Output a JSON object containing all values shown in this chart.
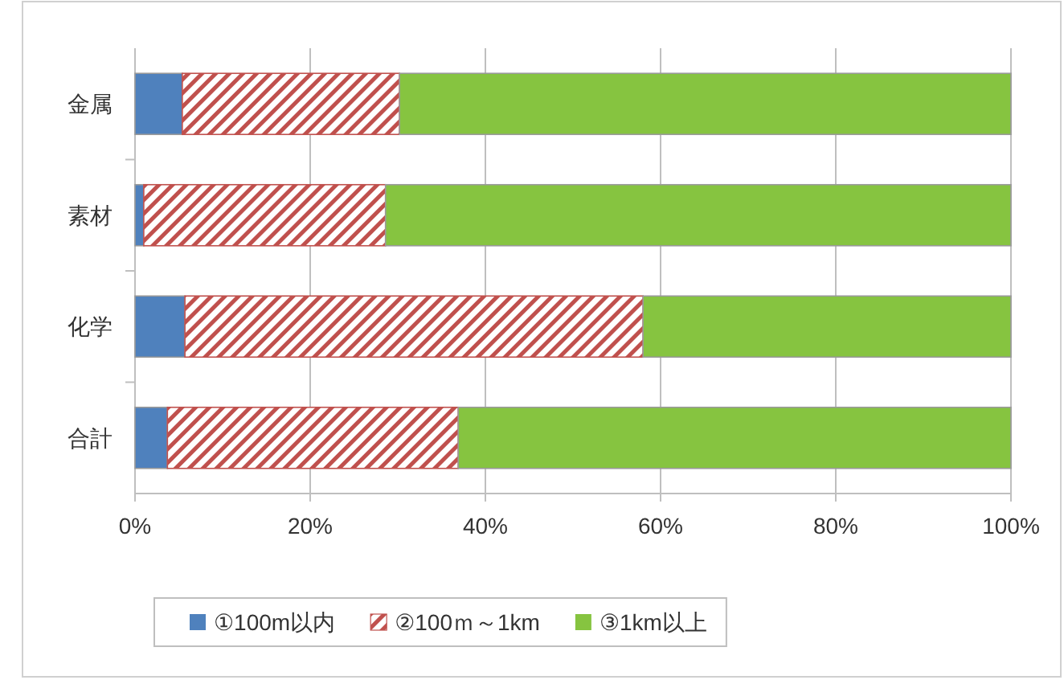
{
  "chart_data": {
    "type": "bar",
    "orientation": "horizontal",
    "stacked": true,
    "categories": [
      "金属",
      "素材",
      "化学",
      "合計"
    ],
    "series": [
      {
        "name": "①100m以内",
        "color": "#4f81bd",
        "values": [
          5.4,
          1.0,
          5.7,
          3.7
        ]
      },
      {
        "name": "②100ｍ～1km",
        "color": "#c0504d",
        "values": [
          24.8,
          27.6,
          52.3,
          33.2
        ]
      },
      {
        "name": "③1km以上",
        "color": "#86c440",
        "values": [
          69.8,
          71.4,
          42.0,
          63.1
        ]
      }
    ],
    "xlim": [
      0,
      100
    ],
    "xticks": [
      {
        "value": 0,
        "label": "0%"
      },
      {
        "value": 20,
        "label": "20%"
      },
      {
        "value": 40,
        "label": "40%"
      },
      {
        "value": 60,
        "label": "60%"
      },
      {
        "value": 80,
        "label": "80%"
      },
      {
        "value": 100,
        "label": "100%"
      }
    ],
    "grid": "x",
    "legend": "bottom"
  }
}
